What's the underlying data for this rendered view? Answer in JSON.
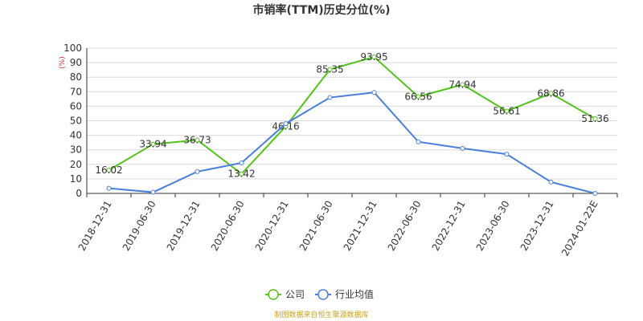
{
  "chart_data": {
    "type": "line",
    "title": "市销率(TTM)历史分位(%)",
    "unit_label": "(%)",
    "categories": [
      "2018-12-31",
      "2019-06-30",
      "2019-12-31",
      "2020-06-30",
      "2020-12-31",
      "2021-06-30",
      "2021-12-31",
      "2022-06-30",
      "2022-12-31",
      "2023-06-30",
      "2023-12-31",
      "2024-01-22E"
    ],
    "ylim": [
      0,
      100
    ],
    "yticks": [
      0,
      10,
      20,
      30,
      40,
      50,
      60,
      70,
      80,
      90,
      100
    ],
    "grid": true,
    "legend_position": "bottom",
    "series": [
      {
        "name": "公司",
        "color": "#52c41a",
        "values": [
          16.02,
          33.94,
          36.73,
          13.42,
          46.16,
          85.35,
          93.95,
          66.56,
          74.94,
          56.61,
          68.86,
          51.36
        ],
        "labels": [
          "16.02",
          "33.94",
          "36.73",
          "13.42",
          "46.16",
          "85.35",
          "93.95",
          "66.56",
          "74.94",
          "56.61",
          "68.86",
          "51.36"
        ]
      },
      {
        "name": "行业均值",
        "color": "#4a7fdc",
        "values": [
          3.5,
          0.8,
          15.0,
          21.0,
          48.0,
          66.0,
          69.5,
          35.5,
          31.0,
          27.0,
          7.8,
          0.0
        ]
      }
    ]
  },
  "footer": {
    "source_text": "制图数据来自恒生聚源数据库"
  }
}
